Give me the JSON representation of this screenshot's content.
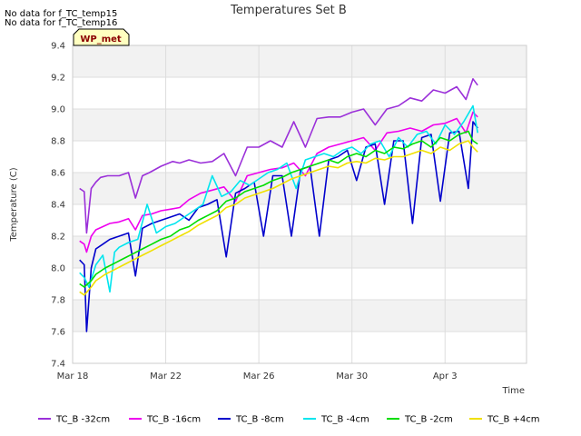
{
  "notes": [
    "No data for f_TC_temp15",
    "No data for f_TC_temp16"
  ],
  "site_label": "WP_met",
  "chart_data": {
    "type": "line",
    "title": "Temperatures Set B",
    "xlabel": "Time",
    "ylabel": "Temperature (C)",
    "xlim": [
      0,
      19.5
    ],
    "ylim": [
      7.4,
      9.4
    ],
    "x_ticks": [
      {
        "label": "Mar 18",
        "day": 0
      },
      {
        "label": "Mar 22",
        "day": 4
      },
      {
        "label": "Mar 26",
        "day": 8
      },
      {
        "label": "Mar 30",
        "day": 12
      },
      {
        "label": "Apr 3",
        "day": 16
      }
    ],
    "y_ticks": [
      7.4,
      7.6,
      7.8,
      8.0,
      8.2,
      8.4,
      8.6,
      8.8,
      9.0,
      9.2,
      9.4
    ],
    "grid": true,
    "legend_position": "bottom",
    "series": [
      {
        "name": "TC_B -32cm",
        "color": "#9b30d9",
        "x": [
          0.3,
          0.5,
          0.6,
          0.8,
          1.0,
          1.2,
          1.5,
          2.0,
          2.4,
          2.7,
          3.0,
          3.3,
          3.8,
          4.3,
          4.6,
          5.0,
          5.5,
          6.0,
          6.5,
          7.0,
          7.5,
          8.0,
          8.5,
          9.0,
          9.5,
          10.0,
          10.5,
          11.0,
          11.5,
          12.0,
          12.5,
          13.0,
          13.5,
          14.0,
          14.5,
          15.0,
          15.5,
          16.0,
          16.5,
          16.9,
          17.2,
          17.4
        ],
        "y": [
          8.5,
          8.48,
          8.22,
          8.5,
          8.54,
          8.57,
          8.58,
          8.58,
          8.6,
          8.44,
          8.58,
          8.6,
          8.64,
          8.67,
          8.66,
          8.68,
          8.66,
          8.67,
          8.72,
          8.58,
          8.76,
          8.76,
          8.8,
          8.76,
          8.92,
          8.76,
          8.94,
          8.95,
          8.95,
          8.98,
          9.0,
          8.9,
          9.0,
          9.02,
          9.07,
          9.05,
          9.12,
          9.1,
          9.14,
          9.06,
          9.19,
          9.15
        ]
      },
      {
        "name": "TC_B -16cm",
        "color": "#ee00ee",
        "x": [
          0.3,
          0.5,
          0.6,
          0.8,
          1.0,
          1.3,
          1.6,
          2.0,
          2.4,
          2.7,
          3.0,
          3.4,
          3.8,
          4.2,
          4.6,
          5.0,
          5.5,
          6.0,
          6.5,
          7.0,
          7.5,
          8.0,
          8.5,
          9.0,
          9.5,
          10.0,
          10.5,
          11.0,
          11.5,
          12.0,
          12.5,
          13.0,
          13.5,
          14.0,
          14.5,
          15.0,
          15.5,
          16.0,
          16.5,
          16.9,
          17.2,
          17.4
        ],
        "y": [
          8.17,
          8.15,
          8.1,
          8.2,
          8.24,
          8.26,
          8.28,
          8.29,
          8.31,
          8.24,
          8.33,
          8.34,
          8.36,
          8.37,
          8.38,
          8.43,
          8.47,
          8.49,
          8.51,
          8.42,
          8.58,
          8.6,
          8.62,
          8.63,
          8.66,
          8.58,
          8.72,
          8.76,
          8.78,
          8.8,
          8.82,
          8.74,
          8.85,
          8.86,
          8.88,
          8.86,
          8.9,
          8.91,
          8.94,
          8.85,
          8.98,
          8.95
        ]
      },
      {
        "name": "TC_B -8cm",
        "color": "#0000cc",
        "x": [
          0.3,
          0.5,
          0.6,
          0.8,
          1.0,
          1.3,
          1.6,
          2.0,
          2.4,
          2.7,
          3.0,
          3.4,
          3.8,
          4.2,
          4.6,
          5.0,
          5.4,
          5.8,
          6.2,
          6.6,
          7.0,
          7.4,
          7.8,
          8.2,
          8.6,
          9.0,
          9.4,
          9.8,
          10.2,
          10.6,
          11.0,
          11.4,
          11.8,
          12.2,
          12.6,
          13.0,
          13.4,
          13.8,
          14.2,
          14.6,
          15.0,
          15.4,
          15.8,
          16.2,
          16.6,
          17.0,
          17.2,
          17.4
        ],
        "y": [
          8.05,
          8.02,
          7.6,
          8.0,
          8.12,
          8.15,
          8.18,
          8.2,
          8.22,
          7.95,
          8.25,
          8.28,
          8.3,
          8.32,
          8.34,
          8.3,
          8.38,
          8.4,
          8.43,
          8.07,
          8.47,
          8.5,
          8.54,
          8.2,
          8.58,
          8.58,
          8.2,
          8.62,
          8.64,
          8.2,
          8.68,
          8.7,
          8.74,
          8.55,
          8.76,
          8.78,
          8.4,
          8.8,
          8.8,
          8.28,
          8.82,
          8.84,
          8.42,
          8.85,
          8.86,
          8.5,
          8.92,
          8.88
        ]
      },
      {
        "name": "TC_B -4cm",
        "color": "#00e5ee",
        "x": [
          0.3,
          0.5,
          0.7,
          1.0,
          1.3,
          1.6,
          1.8,
          2.0,
          2.4,
          2.8,
          3.2,
          3.6,
          4.0,
          4.4,
          4.8,
          5.2,
          5.6,
          6.0,
          6.4,
          6.8,
          7.2,
          7.6,
          8.0,
          8.4,
          8.8,
          9.2,
          9.6,
          10.0,
          10.4,
          10.8,
          11.2,
          11.6,
          12.0,
          12.4,
          12.8,
          13.2,
          13.6,
          14.0,
          14.4,
          14.8,
          15.2,
          15.6,
          16.0,
          16.4,
          16.8,
          17.2,
          17.4
        ],
        "y": [
          7.97,
          7.94,
          7.88,
          8.02,
          8.08,
          7.85,
          8.1,
          8.13,
          8.16,
          8.18,
          8.4,
          8.22,
          8.26,
          8.28,
          8.32,
          8.36,
          8.4,
          8.58,
          8.45,
          8.48,
          8.55,
          8.52,
          8.56,
          8.6,
          8.62,
          8.66,
          8.5,
          8.68,
          8.7,
          8.72,
          8.7,
          8.74,
          8.76,
          8.72,
          8.78,
          8.8,
          8.7,
          8.82,
          8.76,
          8.84,
          8.86,
          8.78,
          8.9,
          8.84,
          8.92,
          9.02,
          8.85
        ]
      },
      {
        "name": "TC_B -2cm",
        "color": "#00dd00",
        "x": [
          0.3,
          0.5,
          0.8,
          1.0,
          1.4,
          1.8,
          2.2,
          2.6,
          3.0,
          3.4,
          3.8,
          4.2,
          4.6,
          5.0,
          5.4,
          5.8,
          6.2,
          6.6,
          7.0,
          7.4,
          7.8,
          8.2,
          8.6,
          9.0,
          9.4,
          9.8,
          10.2,
          10.6,
          11.0,
          11.4,
          11.8,
          12.2,
          12.6,
          13.0,
          13.4,
          13.8,
          14.2,
          14.6,
          15.0,
          15.4,
          15.8,
          16.2,
          16.6,
          17.0,
          17.2,
          17.4
        ],
        "y": [
          7.9,
          7.88,
          7.92,
          7.96,
          8.0,
          8.03,
          8.06,
          8.09,
          8.12,
          8.15,
          8.18,
          8.2,
          8.24,
          8.26,
          8.3,
          8.33,
          8.36,
          8.42,
          8.44,
          8.48,
          8.5,
          8.52,
          8.55,
          8.57,
          8.6,
          8.62,
          8.64,
          8.66,
          8.68,
          8.66,
          8.7,
          8.72,
          8.7,
          8.74,
          8.72,
          8.76,
          8.75,
          8.78,
          8.8,
          8.76,
          8.82,
          8.8,
          8.84,
          8.86,
          8.8,
          8.78
        ]
      },
      {
        "name": "TC_B +4cm",
        "color": "#f0e000",
        "x": [
          0.3,
          0.5,
          0.8,
          1.0,
          1.4,
          1.8,
          2.2,
          2.6,
          3.0,
          3.4,
          3.8,
          4.2,
          4.6,
          5.0,
          5.4,
          5.8,
          6.2,
          6.6,
          7.0,
          7.4,
          7.8,
          8.2,
          8.6,
          9.0,
          9.4,
          9.8,
          10.2,
          10.6,
          11.0,
          11.4,
          11.8,
          12.2,
          12.6,
          13.0,
          13.4,
          13.8,
          14.2,
          14.6,
          15.0,
          15.4,
          15.8,
          16.2,
          16.6,
          17.0,
          17.2,
          17.4
        ],
        "y": [
          7.85,
          7.83,
          7.88,
          7.92,
          7.96,
          7.99,
          8.02,
          8.05,
          8.08,
          8.11,
          8.14,
          8.17,
          8.2,
          8.23,
          8.27,
          8.3,
          8.33,
          8.38,
          8.4,
          8.44,
          8.46,
          8.48,
          8.5,
          8.53,
          8.56,
          8.58,
          8.6,
          8.62,
          8.64,
          8.63,
          8.66,
          8.67,
          8.66,
          8.69,
          8.68,
          8.7,
          8.7,
          8.72,
          8.74,
          8.72,
          8.76,
          8.74,
          8.78,
          8.8,
          8.76,
          8.73
        ]
      }
    ]
  }
}
